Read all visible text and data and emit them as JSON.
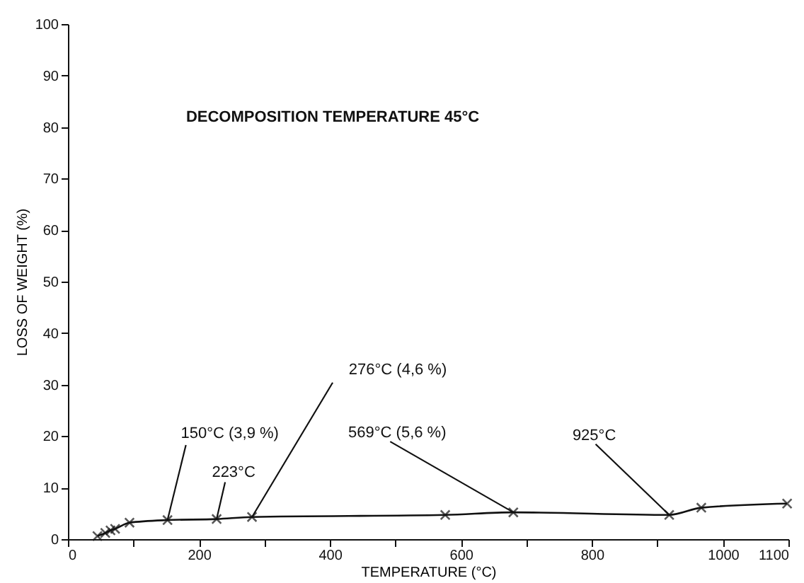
{
  "chart_data": {
    "type": "line",
    "xlabel": "TEMPERATURE  (°C)",
    "ylabel": "LOSS  OF  WEIGHT  (%)",
    "x": [
      45,
      57,
      65,
      72,
      94,
      152,
      227,
      281,
      576,
      680,
      918,
      967,
      1098
    ],
    "series": [
      {
        "color": "#111111",
        "values": [
          0.6,
          1.2,
          1.7,
          2.0,
          3.2,
          3.7,
          3.9,
          4.3,
          4.7,
          5.2,
          4.7,
          6.1,
          6.9
        ]
      }
    ],
    "marker": "cross",
    "grid": false,
    "xlim": [
      0,
      1100
    ],
    "xticks": [
      0,
      {
        "value": 100,
        "label": null
      },
      200,
      {
        "value": 300,
        "label": null
      },
      400,
      {
        "value": 500,
        "label": null
      },
      600,
      {
        "value": 700,
        "label": null
      },
      800,
      {
        "value": 900,
        "label": null
      },
      1000,
      1100
    ],
    "ylim": [
      0,
      100
    ],
    "yticks": [
      0,
      10,
      20,
      30,
      40,
      50,
      60,
      70,
      80,
      90,
      100
    ],
    "annotations": [
      "DECOMPOSITION  TEMPERATURE  45°C",
      {
        "text": "150°C (3,9 %)",
        "x": 152,
        "y": 3.7
      },
      {
        "text": "223°C",
        "x": 227,
        "y": 3.9
      },
      {
        "text": "276°C (4,6 %)",
        "x": 281,
        "y": 4.3
      },
      {
        "text": "569°C (5,6 %)",
        "x": 680,
        "y": 5.2
      },
      {
        "text": "925°C",
        "x": 918,
        "y": 4.7
      }
    ]
  }
}
